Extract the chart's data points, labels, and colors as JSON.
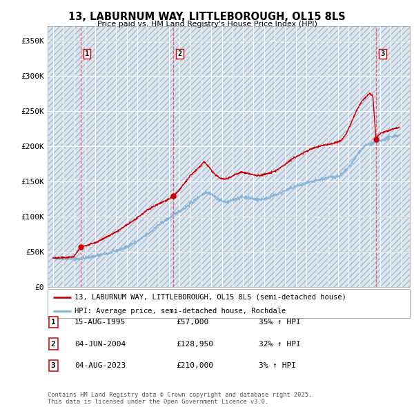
{
  "title": "13, LABURNUM WAY, LITTLEBOROUGH, OL15 8LS",
  "subtitle": "Price paid vs. HM Land Registry's House Price Index (HPI)",
  "ylim": [
    0,
    370000
  ],
  "yticks": [
    0,
    50000,
    100000,
    150000,
    200000,
    250000,
    300000,
    350000
  ],
  "ytick_labels": [
    "£0",
    "£50K",
    "£100K",
    "£150K",
    "£200K",
    "£250K",
    "£300K",
    "£350K"
  ],
  "xlim_start": 1992.5,
  "xlim_end": 2026.8,
  "background_color": "#ffffff",
  "plot_bg_color": "#dce6f1",
  "grid_color": "#ffffff",
  "sale_dates": [
    1995.622,
    2004.422,
    2023.589
  ],
  "sale_prices": [
    57000,
    128950,
    210000
  ],
  "sale_labels": [
    "1",
    "2",
    "3"
  ],
  "dashed_line_color": "#ff4444",
  "red_line_color": "#cc0000",
  "blue_line_color": "#7bafd4",
  "legend_entry1": "13, LABURNUM WAY, LITTLEBOROUGH, OL15 8LS (semi-detached house)",
  "legend_entry2": "HPI: Average price, semi-detached house, Rochdale",
  "table_rows": [
    {
      "label": "1",
      "date": "15-AUG-1995",
      "price": "£57,000",
      "change": "35% ↑ HPI"
    },
    {
      "label": "2",
      "date": "04-JUN-2004",
      "price": "£128,950",
      "change": "32% ↑ HPI"
    },
    {
      "label": "3",
      "date": "04-AUG-2023",
      "price": "£210,000",
      "change": "3% ↑ HPI"
    }
  ],
  "footer": "Contains HM Land Registry data © Crown copyright and database right 2025.\nThis data is licensed under the Open Government Licence v3.0."
}
